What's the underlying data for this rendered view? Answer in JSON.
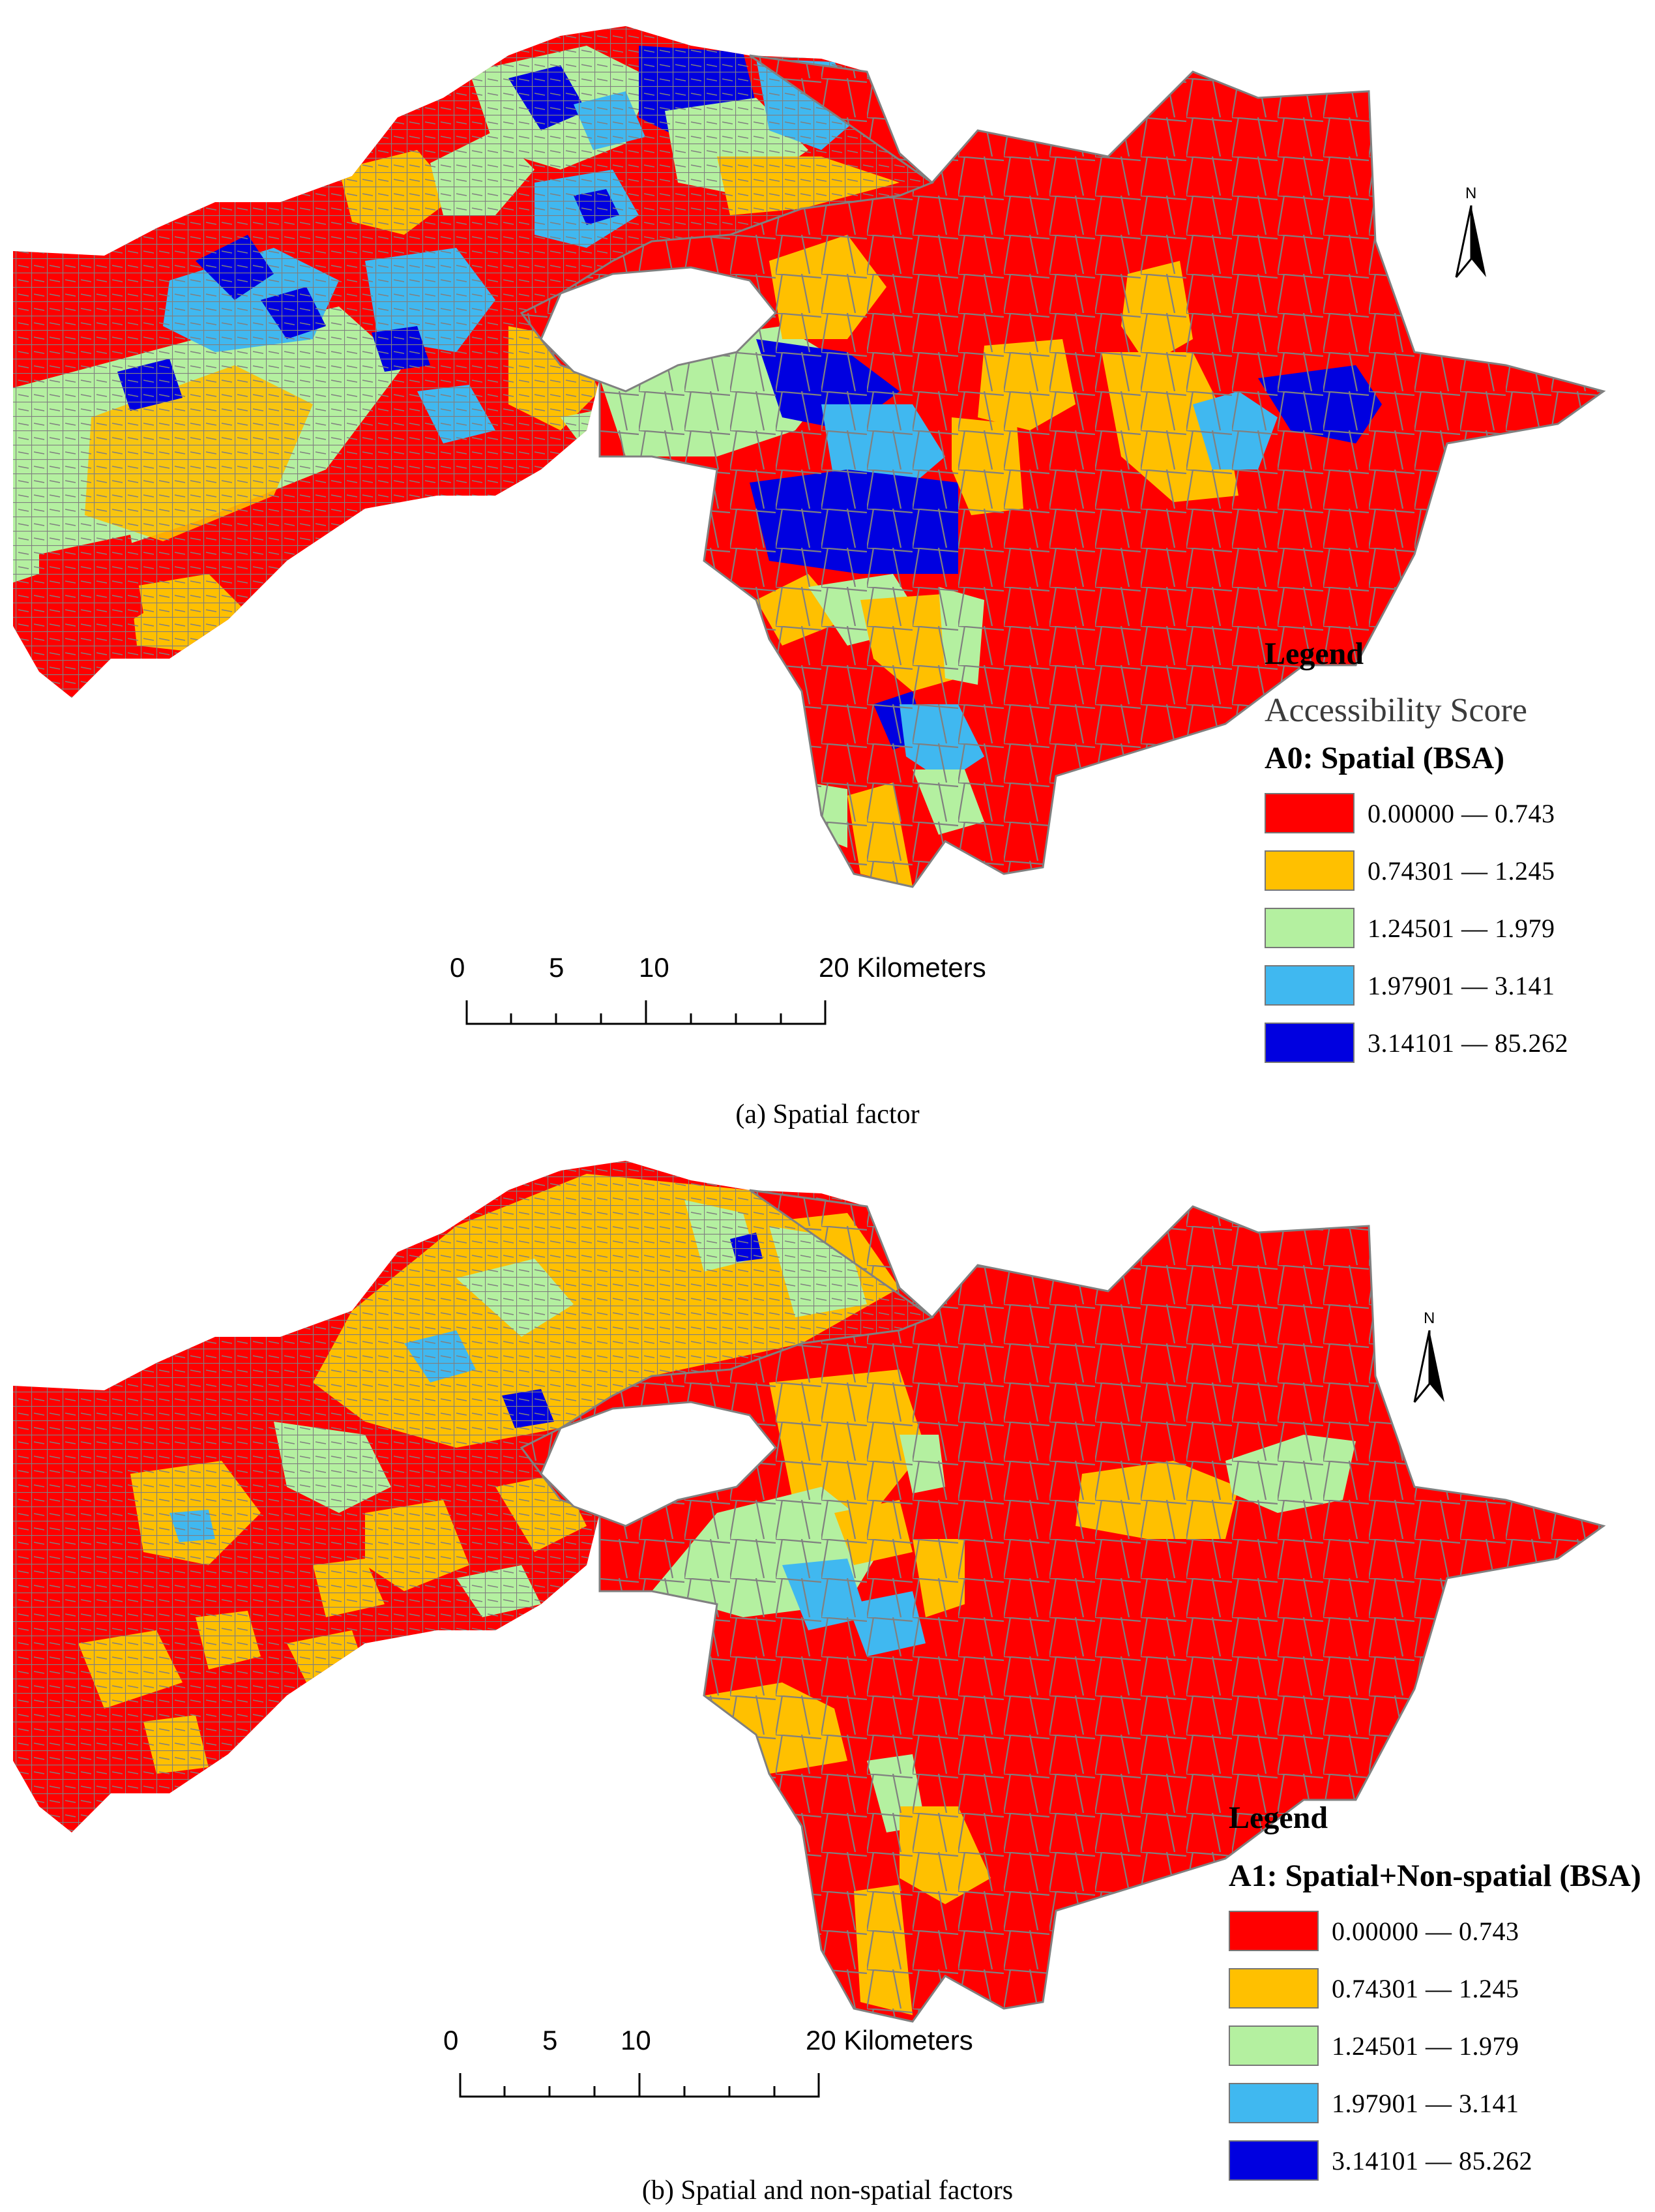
{
  "colors": {
    "class1": "#ff0000",
    "class2": "#ffc000",
    "class3": "#b4f0a0",
    "class4": "#40b8f0",
    "class5": "#0000e0",
    "boundary": "#808080"
  },
  "panels": [
    {
      "north_label": "N",
      "legend_title": "Legend",
      "legend_subtitle": "Accessibility Score",
      "layer_name": "A0: Spatial (BSA)",
      "classes": [
        {
          "label": "0.00000 — 0.743",
          "color": "#ff0000"
        },
        {
          "label": "0.74301 — 1.245",
          "color": "#ffc000"
        },
        {
          "label": "1.24501 — 1.979",
          "color": "#b4f0a0"
        },
        {
          "label": "1.97901 — 3.141",
          "color": "#40b8f0"
        },
        {
          "label": "3.14101 — 85.262",
          "color": "#0000e0"
        }
      ],
      "scale_ticks": [
        "0",
        "5",
        "10",
        "20 Kilometers"
      ],
      "caption_letter": "(a)",
      "caption_text": " Spatial factor"
    },
    {
      "north_label": "N",
      "legend_title": "Legend",
      "layer_name": "A1: Spatial+Non-spatial (BSA)",
      "classes": [
        {
          "label": "0.00000 — 0.743",
          "color": "#ff0000"
        },
        {
          "label": "0.74301 — 1.245",
          "color": "#ffc000"
        },
        {
          "label": "1.24501 — 1.979",
          "color": "#b4f0a0"
        },
        {
          "label": "1.97901 — 3.141",
          "color": "#40b8f0"
        },
        {
          "label": "3.14101 — 85.262",
          "color": "#0000e0"
        }
      ],
      "scale_ticks": [
        "0",
        "5",
        "10",
        "20 Kilometers"
      ],
      "caption_letter": "(b)",
      "caption_text": " Spatial and non-spatial factors"
    }
  ]
}
